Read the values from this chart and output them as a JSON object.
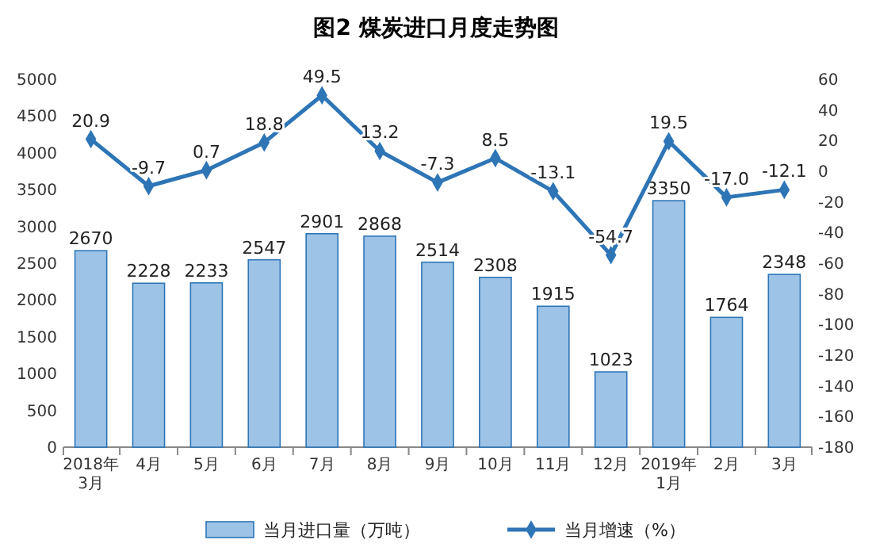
{
  "chart_data": {
    "type": "bar",
    "title": "图2  煤炭进口月度走势图",
    "categories": [
      "2018年\n3月",
      "4月",
      "5月",
      "6月",
      "7月",
      "8月",
      "9月",
      "10月",
      "11月",
      "12月",
      "2019年\n1月",
      "2月",
      "3月"
    ],
    "series": [
      {
        "name": "当月进口量（万吨）",
        "color": "#9dc3e6",
        "values": [
          2670,
          2228,
          2233,
          2547,
          2901,
          2868,
          2514,
          2308,
          1915,
          1023,
          3350,
          1764,
          2348
        ]
      },
      {
        "name": "当月增速（%）",
        "type": "line",
        "axis": "y2",
        "color": "#2e75b6",
        "marker": "diamond",
        "values": [
          20.9,
          -9.7,
          0.7,
          18.8,
          49.5,
          13.2,
          -7.3,
          8.5,
          -13.1,
          -54.7,
          19.5,
          -17.0,
          -12.1
        ],
        "value_labels": [
          "20.9",
          "-9.7",
          "0.7",
          "18.8",
          "49.5",
          "13.2",
          "-7.3",
          "8.5",
          "-13.1",
          "-54.7",
          "19.5",
          "-17.0",
          "-12.1"
        ]
      }
    ],
    "ylim": [
      0,
      5000
    ],
    "yticks": [
      0,
      500,
      1000,
      1500,
      2000,
      2500,
      3000,
      3500,
      4000,
      4500,
      5000
    ],
    "y2lim": [
      -180,
      60
    ],
    "y2ticks": [
      -180,
      -160,
      -140,
      -120,
      -100,
      -80,
      -60,
      -40,
      -20,
      0,
      20,
      40,
      60
    ],
    "data_labels": true,
    "grid": false,
    "legend": "bottom"
  }
}
